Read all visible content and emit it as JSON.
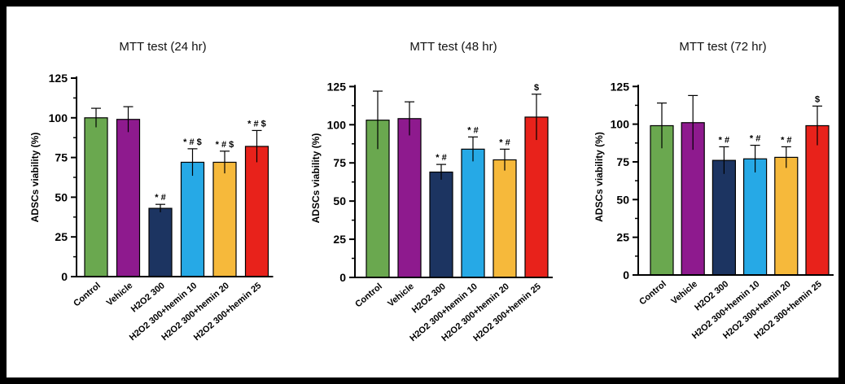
{
  "chart_data": [
    {
      "type": "bar",
      "title": "MTT test (24 hr)",
      "ylabel": "ADSCs viability (%)",
      "ylim": [
        0,
        125
      ],
      "yticks": [
        0,
        25,
        50,
        75,
        100,
        125
      ],
      "categories": [
        "Control",
        "Vehicle",
        "H2O2 300",
        "H2O2 300+hemin 10",
        "H2O2 300+hemin 20",
        "H2O2 300+hemin 25"
      ],
      "values": [
        100,
        99,
        43,
        72,
        72,
        82
      ],
      "errors": [
        6,
        8,
        2.5,
        8.5,
        7,
        10
      ],
      "annotations": [
        "",
        "",
        "*#",
        "*#$",
        "*#$",
        "*#$"
      ],
      "colors": [
        "#6aa84f",
        "#8e1a8e",
        "#1c3461",
        "#26a9e6",
        "#f6b93b",
        "#e8221b"
      ]
    },
    {
      "type": "bar",
      "title": "MTT test (48 hr)",
      "ylabel": "ADSCs viability (%)",
      "ylim": [
        0,
        130
      ],
      "yticks": [
        0,
        25,
        50,
        75,
        100,
        125
      ],
      "categories": [
        "Control",
        "Vehicle",
        "H2O2 300",
        "H2O2 300+hemin 10",
        "H2O2 300+hemin 20",
        "H2O2 300+hemin 25"
      ],
      "values": [
        103,
        104,
        69,
        84,
        77,
        105
      ],
      "errors": [
        19,
        11,
        5,
        8,
        7,
        15
      ],
      "annotations": [
        "",
        "",
        "*#",
        "*#",
        "*#",
        "$"
      ],
      "colors": [
        "#6aa84f",
        "#8e1a8e",
        "#1c3461",
        "#26a9e6",
        "#f6b93b",
        "#e8221b"
      ]
    },
    {
      "type": "bar",
      "title": "MTT test (72 hr)",
      "ylabel": "ADSCs viability (%)",
      "ylim": [
        0,
        130
      ],
      "yticks": [
        0,
        25,
        50,
        75,
        100,
        125
      ],
      "categories": [
        "Control",
        "Vehicle",
        "H2O2 300",
        "H2O2 300+hemin 10",
        "H2O2 300+hemin 20",
        "H2O2 300+hemin 25"
      ],
      "values": [
        99,
        101,
        76,
        77,
        78,
        99
      ],
      "errors": [
        15,
        18,
        9,
        9,
        7,
        13
      ],
      "annotations": [
        "",
        "",
        "*#",
        "*#",
        "*#",
        "$"
      ],
      "colors": [
        "#6aa84f",
        "#8e1a8e",
        "#1c3461",
        "#26a9e6",
        "#f6b93b",
        "#e8221b"
      ]
    }
  ]
}
